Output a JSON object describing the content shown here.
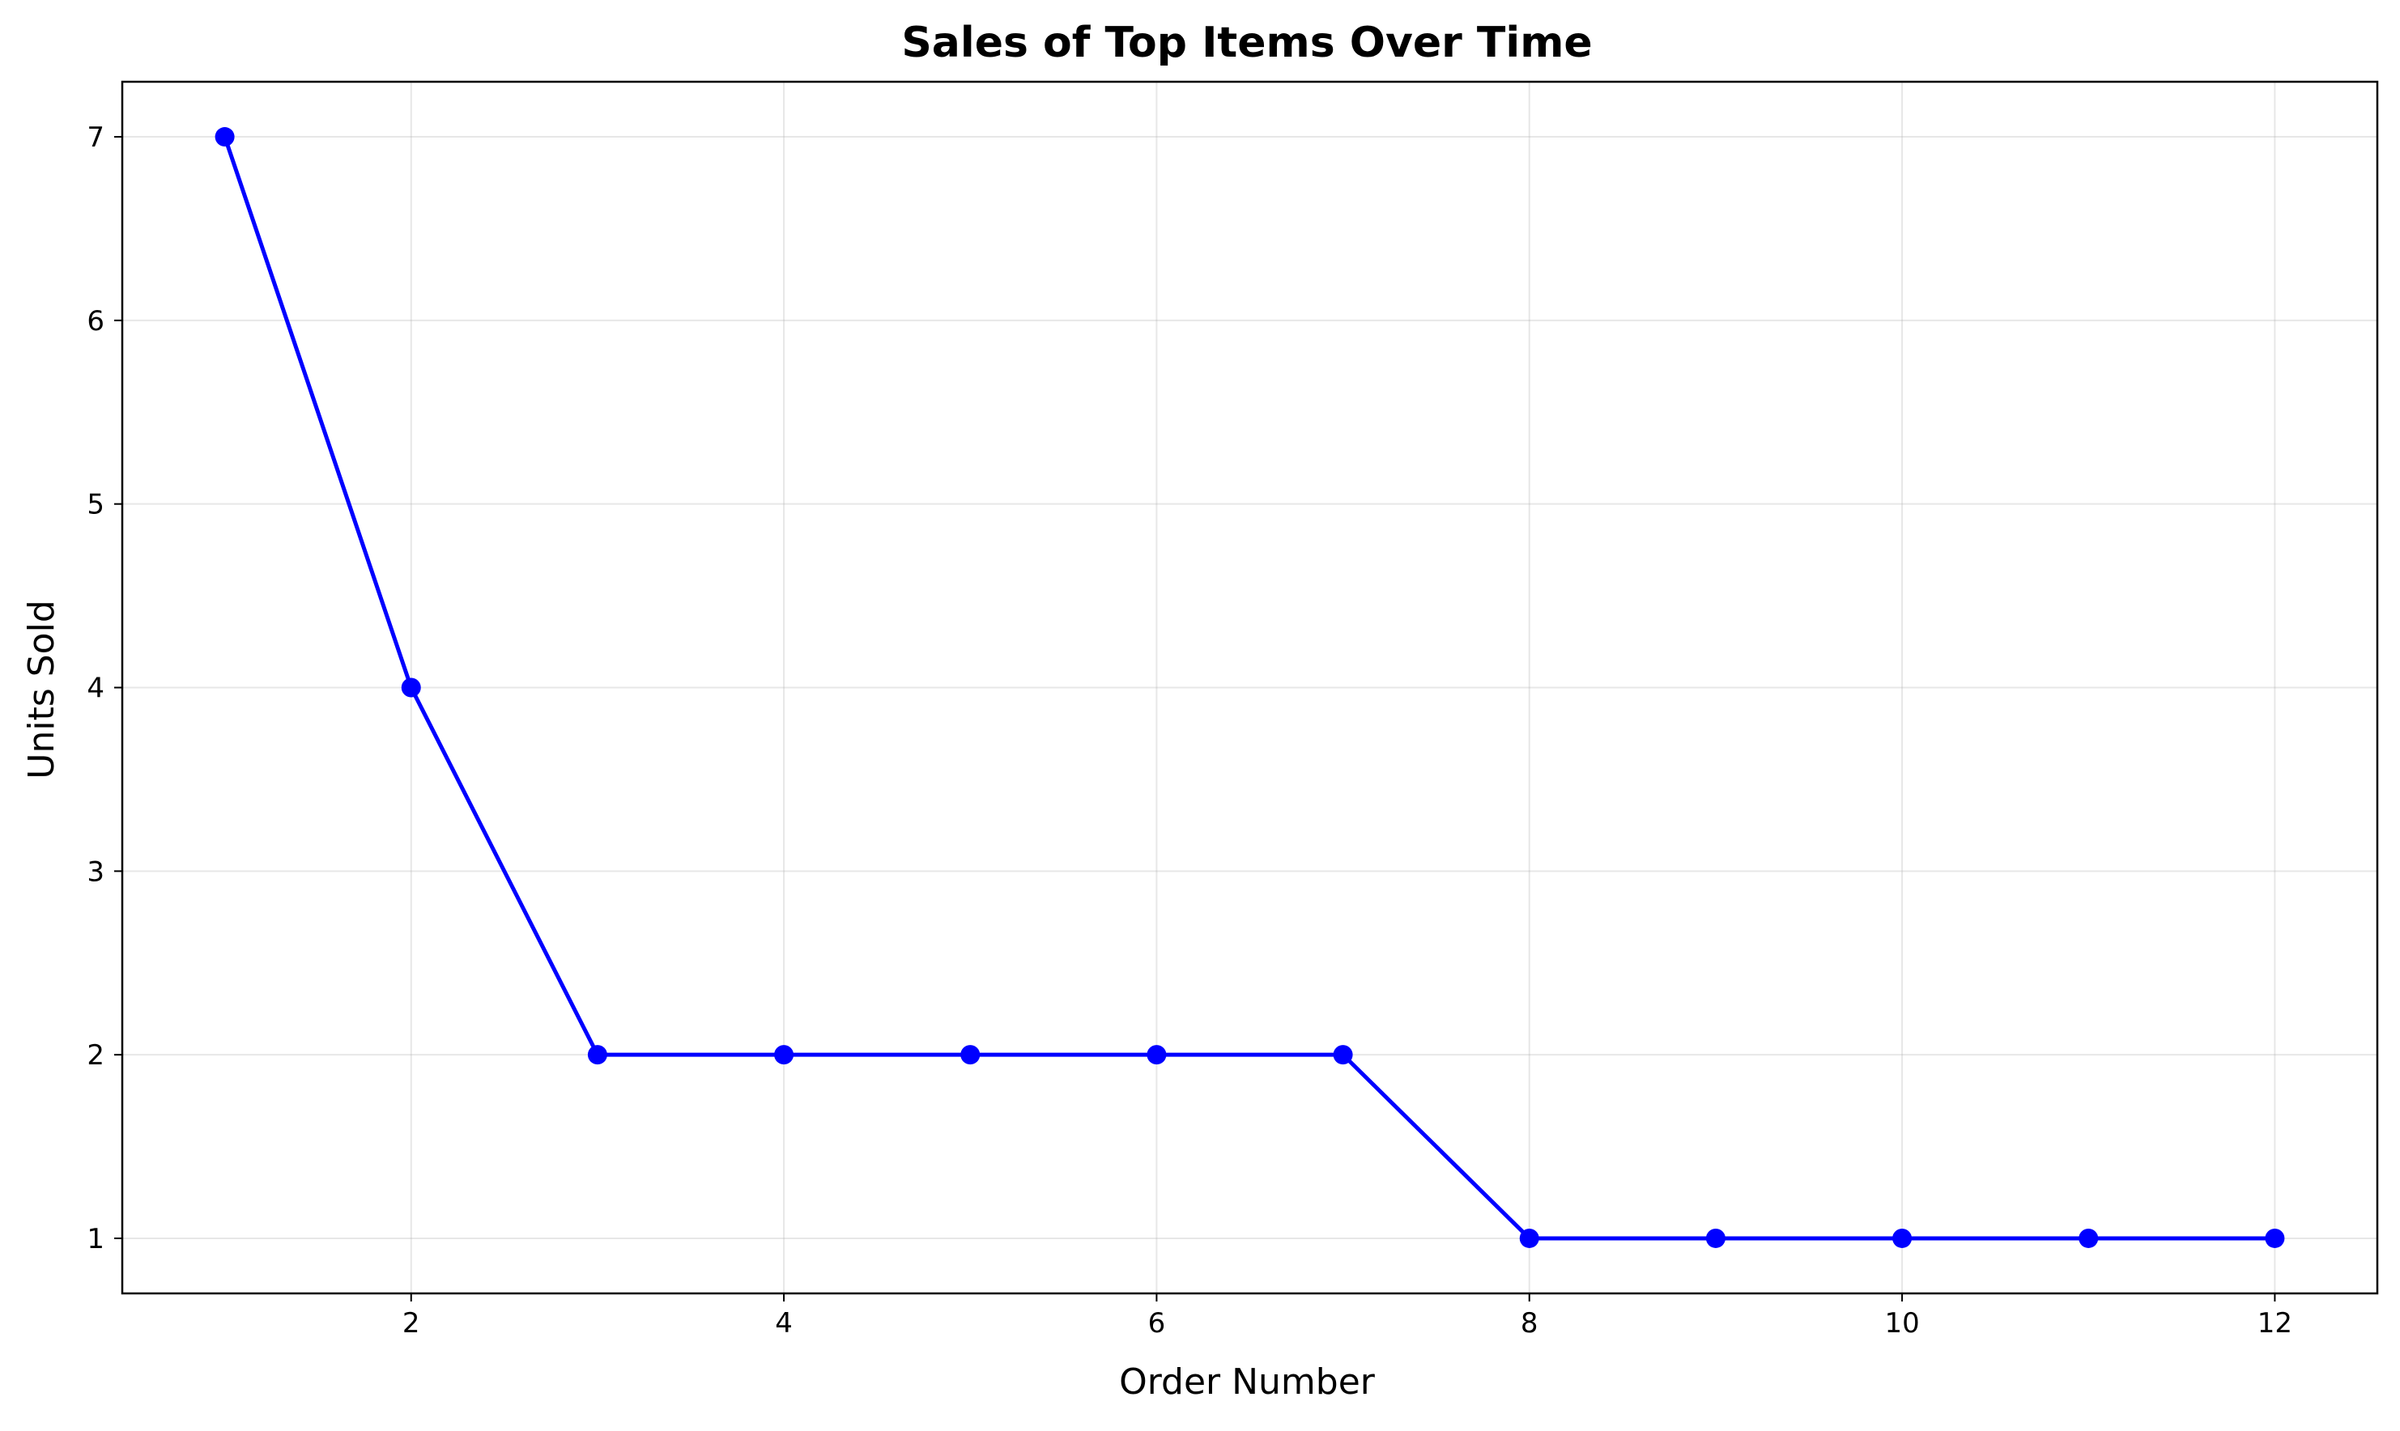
{
  "chart_data": {
    "type": "line",
    "title": "Sales of Top Items Over Time",
    "xlabel": "Order Number",
    "ylabel": "Units Sold",
    "x": [
      1,
      2,
      3,
      4,
      5,
      6,
      7,
      8,
      9,
      10,
      11,
      12
    ],
    "series": [
      {
        "values": [
          7,
          4,
          2,
          2,
          2,
          2,
          2,
          1,
          1,
          1,
          1,
          1
        ],
        "color": "#0000ff",
        "marker": "circle"
      }
    ],
    "xlim": [
      0.45,
      12.55
    ],
    "ylim": [
      0.7,
      7.3
    ],
    "xticks": [
      2,
      4,
      6,
      8,
      10,
      12
    ],
    "xtick_labels": [
      "2",
      "4",
      "6",
      "8",
      "10",
      "12"
    ],
    "yticks": [
      1,
      2,
      3,
      4,
      5,
      6,
      7
    ],
    "ytick_labels": [
      "1",
      "2",
      "3",
      "4",
      "5",
      "6",
      "7"
    ],
    "grid": true,
    "legend": "none"
  }
}
